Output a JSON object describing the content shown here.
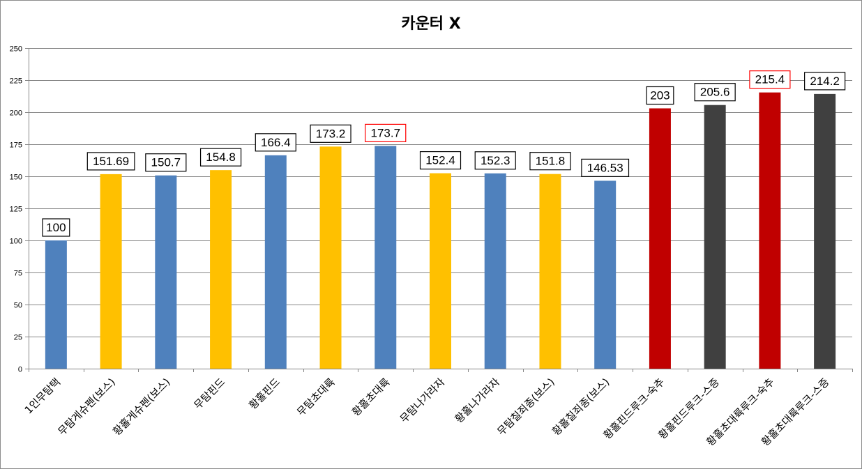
{
  "chart_data": {
    "type": "bar",
    "title": "카운터 X",
    "xlabel": "",
    "ylabel": "",
    "ylim": [
      0,
      250
    ],
    "yticks": [
      0,
      25,
      50,
      75,
      100,
      125,
      150,
      175,
      200,
      225,
      250
    ],
    "grid": true,
    "legend": "none",
    "categories": [
      "1인무탐택",
      "무탐게슈펜(보스)",
      "황홀게슈펜(보스)",
      "무탐핀드",
      "황홀핀드",
      "무탐초대륙",
      "황홀초대륙",
      "무탐나가라자",
      "황홀나가라자",
      "무탐칠죄종(보스)",
      "황홀칠죄종(보스)",
      "황홀핀드루크-숙추",
      "황홀핀드루크-스증",
      "황홀초대륙루크-숙추",
      "황홀초대륙루크-스증"
    ],
    "values": [
      100,
      151.69,
      150.7,
      154.8,
      166.4,
      173.2,
      173.7,
      152.4,
      152.3,
      151.8,
      146.53,
      203,
      205.6,
      215.4,
      214.2
    ],
    "value_labels": [
      "100",
      "151.69",
      "150.7",
      "154.8",
      "166.4",
      "173.2",
      "173.7",
      "152.4",
      "152.3",
      "151.8",
      "146.53",
      "203",
      "205.6",
      "215.4",
      "214.2"
    ],
    "bar_colors": [
      "#4f81bd",
      "#ffc000",
      "#4f81bd",
      "#ffc000",
      "#4f81bd",
      "#ffc000",
      "#4f81bd",
      "#ffc000",
      "#4f81bd",
      "#ffc000",
      "#4f81bd",
      "#c00000",
      "#404040",
      "#c00000",
      "#404040"
    ],
    "label_border_colors": [
      "#000000",
      "#000000",
      "#000000",
      "#000000",
      "#000000",
      "#000000",
      "#ff0000",
      "#000000",
      "#000000",
      "#000000",
      "#000000",
      "#000000",
      "#000000",
      "#ff0000",
      "#000000"
    ],
    "colors": {
      "grid": "#868686",
      "axis": "#868686"
    }
  }
}
